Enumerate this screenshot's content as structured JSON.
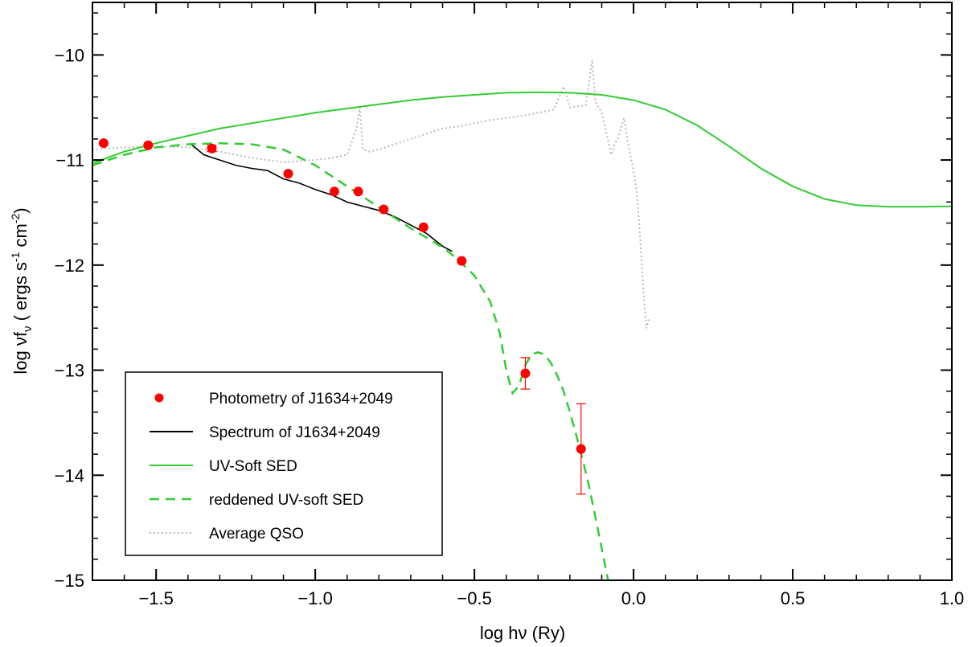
{
  "chart_data": {
    "type": "scatter",
    "title": "",
    "xlabel": "log hν (Ry)",
    "ylabel_main": "log νf",
    "ylabel_sub": "ν",
    "ylabel_units_a": " ( ergs s",
    "ylabel_units_sup1": "-1",
    "ylabel_units_b": " cm",
    "ylabel_units_sup2": "-2",
    "ylabel_units_c": ")",
    "xlim": [
      -1.7,
      1.0
    ],
    "ylim": [
      -15,
      -9.5
    ],
    "xticks": [
      -1.5,
      -1.0,
      -0.5,
      0.0,
      0.5,
      1.0
    ],
    "xtick_labels": [
      "−1.5",
      "−1.0",
      "−0.5",
      "0.0",
      "0.5",
      "1.0"
    ],
    "yticks": [
      -15,
      -14,
      -13,
      -12,
      -11,
      -10
    ],
    "ytick_labels": [
      "−15",
      "−14",
      "−13",
      "−12",
      "−11",
      "−10"
    ],
    "legend_position": "bottom-left",
    "series": [
      {
        "name": "Photometry of J1634+2049",
        "kind": "points",
        "color": "#ff0000",
        "points": [
          {
            "x": -1.665,
            "y": -10.84
          },
          {
            "x": -1.525,
            "y": -10.86
          },
          {
            "x": -1.325,
            "y": -10.89,
            "err": 0.03
          },
          {
            "x": -1.085,
            "y": -11.13
          },
          {
            "x": -0.94,
            "y": -11.3
          },
          {
            "x": -0.865,
            "y": -11.3
          },
          {
            "x": -0.785,
            "y": -11.47
          },
          {
            "x": -0.66,
            "y": -11.64
          },
          {
            "x": -0.54,
            "y": -11.96
          },
          {
            "x": -0.34,
            "y": -13.03,
            "err": 0.15
          },
          {
            "x": -0.165,
            "y": -13.75,
            "err": 0.43
          }
        ]
      },
      {
        "name": "Spectrum of J1634+2049",
        "kind": "spectrum",
        "color": "#000000",
        "x": [
          -1.39,
          -1.35,
          -1.3,
          -1.25,
          -1.2,
          -1.15,
          -1.1,
          -1.05,
          -1.0,
          -0.95,
          -0.9,
          -0.85,
          -0.8,
          -0.75,
          -0.7,
          -0.65,
          -0.6,
          -0.57
        ],
        "y": [
          -10.85,
          -10.95,
          -11.0,
          -11.05,
          -11.08,
          -11.1,
          -11.18,
          -11.22,
          -11.28,
          -11.33,
          -11.4,
          -11.44,
          -11.48,
          -11.54,
          -11.62,
          -11.7,
          -11.82,
          -11.87
        ]
      },
      {
        "name": "UV-Soft SED",
        "kind": "line",
        "color": "#33cc33",
        "x": [
          -1.7,
          -1.6,
          -1.5,
          -1.4,
          -1.3,
          -1.2,
          -1.1,
          -1.0,
          -0.9,
          -0.8,
          -0.7,
          -0.6,
          -0.5,
          -0.4,
          -0.3,
          -0.2,
          -0.1,
          0.0,
          0.1,
          0.2,
          0.3,
          0.4,
          0.5,
          0.6,
          0.7,
          0.8,
          0.9,
          1.0
        ],
        "y": [
          -11.03,
          -10.92,
          -10.84,
          -10.77,
          -10.7,
          -10.65,
          -10.6,
          -10.55,
          -10.51,
          -10.47,
          -10.43,
          -10.4,
          -10.38,
          -10.36,
          -10.355,
          -10.36,
          -10.38,
          -10.43,
          -10.52,
          -10.67,
          -10.87,
          -11.08,
          -11.25,
          -11.37,
          -11.43,
          -11.445,
          -11.445,
          -11.44
        ]
      },
      {
        "name": "reddened UV-soft SED",
        "kind": "dashed",
        "color": "#33cc33",
        "x": [
          -1.7,
          -1.6,
          -1.5,
          -1.4,
          -1.3,
          -1.2,
          -1.1,
          -1.0,
          -0.9,
          -0.8,
          -0.7,
          -0.6,
          -0.55,
          -0.5,
          -0.45,
          -0.42,
          -0.4,
          -0.38,
          -0.36,
          -0.34,
          -0.32,
          -0.3,
          -0.28,
          -0.26,
          -0.24,
          -0.22,
          -0.2,
          -0.18,
          -0.16,
          -0.14,
          -0.12,
          -0.1,
          -0.08
        ],
        "y": [
          -11.05,
          -10.95,
          -10.88,
          -10.85,
          -10.84,
          -10.85,
          -10.9,
          -11.05,
          -11.25,
          -11.45,
          -11.65,
          -11.83,
          -11.95,
          -12.1,
          -12.35,
          -12.65,
          -13.0,
          -13.22,
          -13.15,
          -12.95,
          -12.85,
          -12.83,
          -12.85,
          -12.93,
          -13.05,
          -13.2,
          -13.4,
          -13.62,
          -13.85,
          -14.1,
          -14.4,
          -14.7,
          -15.0
        ]
      },
      {
        "name": "Average QSO",
        "kind": "dotted",
        "color": "#bbbbbb",
        "x": [
          -1.7,
          -1.6,
          -1.5,
          -1.4,
          -1.3,
          -1.2,
          -1.1,
          -1.0,
          -0.95,
          -0.9,
          -0.87,
          -0.86,
          -0.85,
          -0.83,
          -0.8,
          -0.75,
          -0.7,
          -0.65,
          -0.6,
          -0.55,
          -0.5,
          -0.45,
          -0.4,
          -0.35,
          -0.3,
          -0.25,
          -0.22,
          -0.2,
          -0.15,
          -0.13,
          -0.12,
          -0.1,
          -0.07,
          -0.06,
          -0.05,
          -0.04,
          -0.03,
          -0.02,
          -0.01,
          0.0,
          0.01,
          0.02,
          0.03,
          0.04,
          0.05
        ],
        "y": [
          -10.9,
          -10.88,
          -10.87,
          -10.88,
          -10.92,
          -10.98,
          -11.02,
          -11.0,
          -10.98,
          -10.95,
          -10.7,
          -10.5,
          -10.9,
          -10.92,
          -10.9,
          -10.85,
          -10.8,
          -10.75,
          -10.7,
          -10.68,
          -10.65,
          -10.62,
          -10.6,
          -10.58,
          -10.55,
          -10.52,
          -10.3,
          -10.5,
          -10.48,
          -10.05,
          -10.45,
          -10.55,
          -10.95,
          -10.85,
          -10.8,
          -10.7,
          -10.6,
          -10.8,
          -10.95,
          -11.1,
          -11.3,
          -11.7,
          -12.2,
          -12.6,
          -12.5
        ]
      }
    ]
  }
}
